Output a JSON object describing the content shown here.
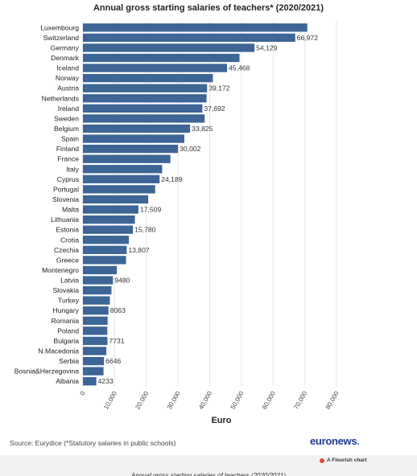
{
  "title": "Annual gross starting salaries of teachers* (2020/2021)",
  "source": "Source: Eurydice (*Statutory salaries in public schools)",
  "brand": {
    "name": "euronews",
    "dot": "."
  },
  "flourish": "A Flourish chart",
  "cutoff_title": "Annual gross starting salaries of teachers (2020/2021)",
  "colors": {
    "bar": "#3d6596",
    "grid": "#e6e6e6",
    "brand": "#1a3a8f"
  },
  "chart_data": {
    "type": "bar",
    "orientation": "horizontal",
    "title": "Annual gross starting salaries of teachers* (2020/2021)",
    "xlabel": "Euro",
    "xlim": [
      0,
      80000
    ],
    "xticks": [
      "0",
      "10,000",
      "20,000",
      "30,000",
      "40,000",
      "50,000",
      "60,000",
      "70,000",
      "80,000"
    ],
    "grid": true,
    "categories": [
      "Luxembourg",
      "Switzerland",
      "Germany",
      "Denmark",
      "Iceland",
      "Norway",
      "Austria",
      "Netherlands",
      "Ireland",
      "Sweden",
      "Belgium",
      "Spain",
      "Finland",
      "France",
      "Italy",
      "Cyprus",
      "Portugal",
      "Slovenia",
      "Malta",
      "Lithuania",
      "Estonia",
      "Crotia",
      "Czechia",
      "Greece",
      "Montenegro",
      "Latvia",
      "Slovakia",
      "Turkey",
      "Hungary",
      "Romania",
      "Poland",
      "Bulgaria",
      "N.Macedonia",
      "Serbia",
      "Bosnia&Herzegovina",
      "Albania"
    ],
    "values": [
      70800,
      66972,
      54129,
      49400,
      45468,
      41000,
      39172,
      39000,
      37692,
      38400,
      33825,
      32000,
      30002,
      27600,
      25000,
      24189,
      22800,
      20600,
      17509,
      16400,
      15780,
      14500,
      13807,
      13600,
      10700,
      9480,
      9000,
      8500,
      8063,
      7800,
      7700,
      7731,
      7400,
      6646,
      6500,
      4233
    ],
    "data_labels": [
      "",
      "66,972",
      "54,129",
      "",
      "45,468",
      "",
      "39,172",
      "",
      "37,692",
      "",
      "33,825",
      "",
      "30,002",
      "",
      "",
      "24,189",
      "",
      "",
      "17,509",
      "",
      "15,780",
      "",
      "13,807",
      "",
      "",
      "9480",
      "",
      "",
      "8063",
      "",
      "",
      "7731",
      "",
      "6646",
      "",
      "4233"
    ]
  }
}
